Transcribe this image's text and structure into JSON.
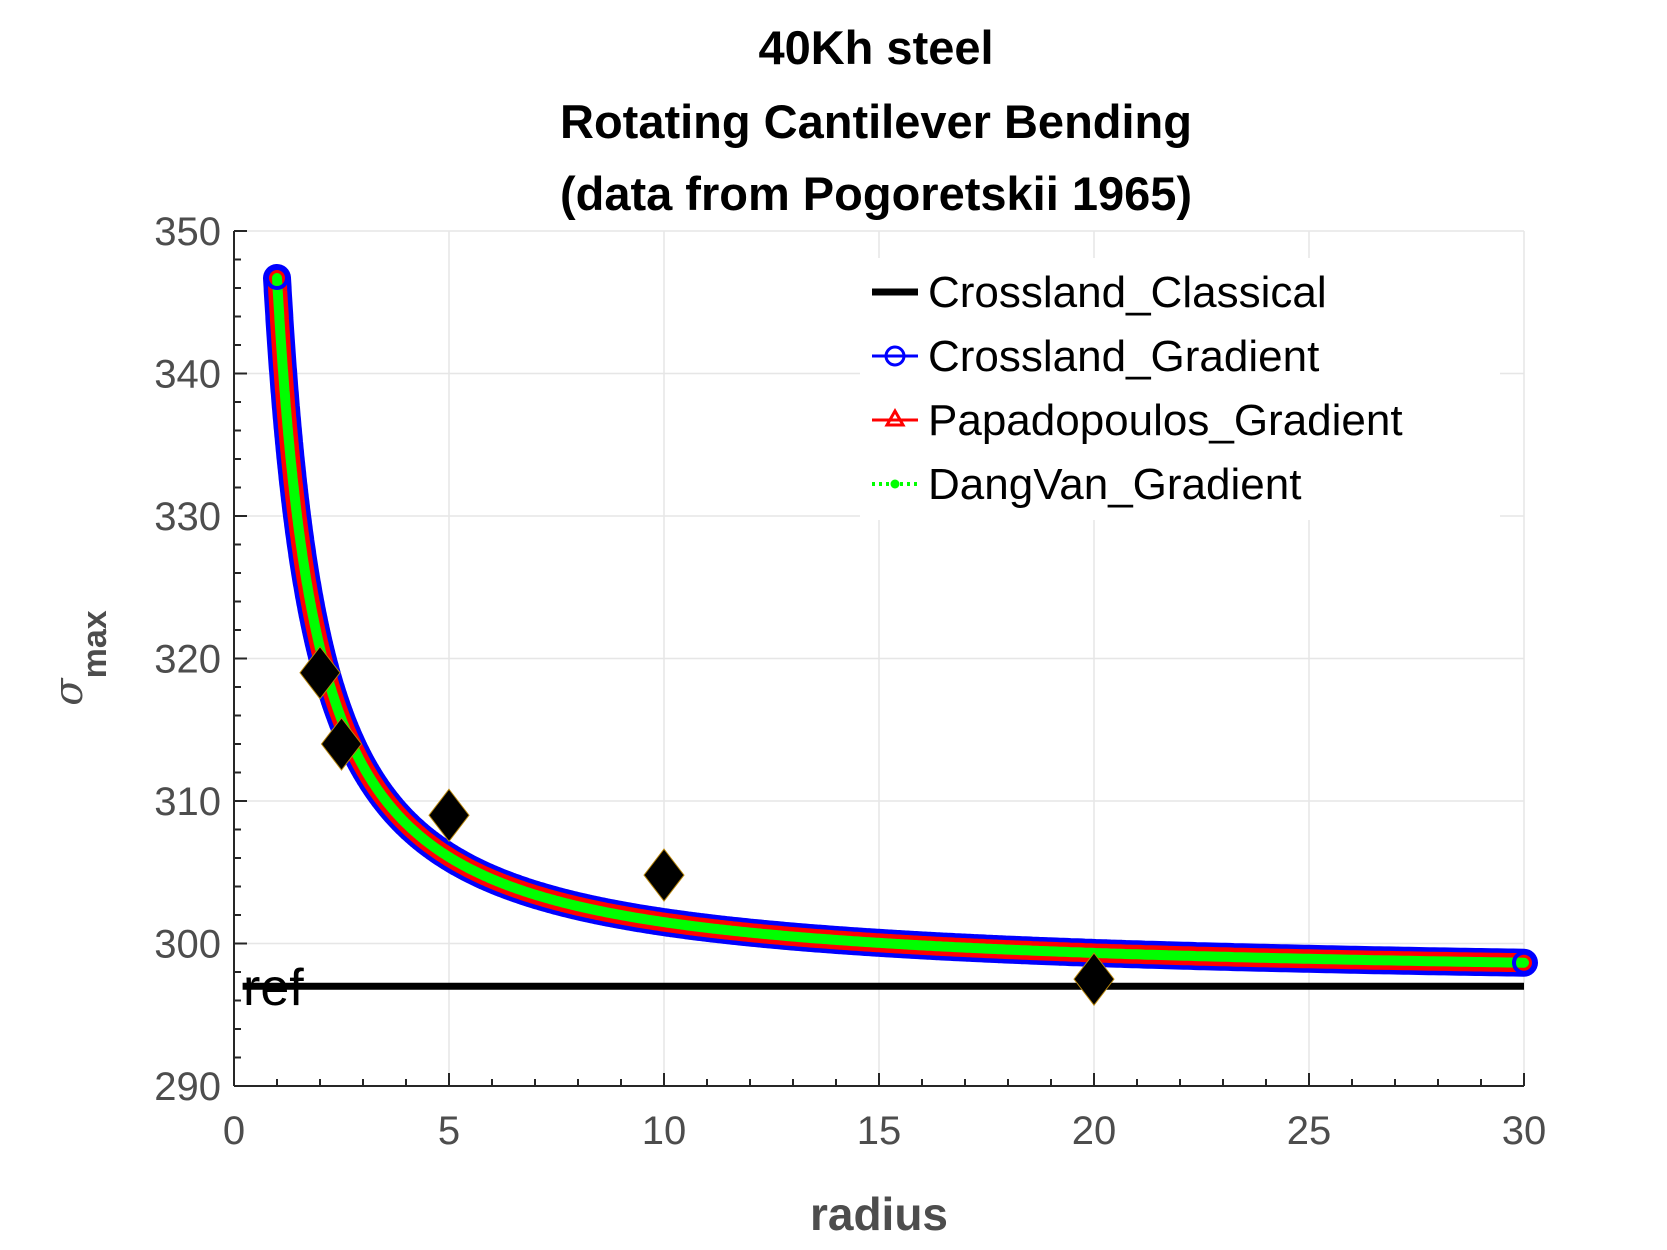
{
  "chart_data": {
    "type": "line",
    "title_lines": [
      "40Kh steel",
      "Rotating Cantilever Bending",
      "(data from Pogoretskii 1965)"
    ],
    "xlabel": "radius",
    "ylabel_symbol": "σ",
    "ylabel_subscript": "max",
    "xlim": [
      0,
      30
    ],
    "ylim": [
      290,
      350
    ],
    "xticks": [
      0,
      5,
      10,
      15,
      20,
      25,
      30
    ],
    "yticks": [
      290,
      300,
      310,
      320,
      330,
      340,
      350
    ],
    "grid": true,
    "legend_position": "top-right",
    "annotation": "ref",
    "series": [
      {
        "name": "Crossland_Classical",
        "color": "#000000",
        "style": "solid-thick",
        "x": [
          0.2,
          30
        ],
        "y": [
          297,
          297
        ]
      },
      {
        "name": "Crossland_Gradient",
        "color": "#0000ff",
        "style": "line-circle",
        "model": {
          "a": 297.4,
          "b": 49.3,
          "c": 0.08,
          "x_start": 1,
          "x_end": 30
        }
      },
      {
        "name": "Papadopoulos_Gradient",
        "color": "#ff0000",
        "style": "line-triangle",
        "model": {
          "a": 297.4,
          "b": 49.3,
          "c": 0.08,
          "x_start": 1,
          "x_end": 30
        }
      },
      {
        "name": "DangVan_Gradient",
        "color": "#00ff00",
        "style": "dotted-point",
        "model": {
          "a": 297.4,
          "b": 49.3,
          "c": 0.08,
          "x_start": 1,
          "x_end": 30
        }
      }
    ],
    "experimental": {
      "marker": "diamond",
      "color": "#000000",
      "x": [
        2,
        2.5,
        5,
        10,
        20
      ],
      "y": [
        319,
        314,
        309,
        304.8,
        297.5
      ]
    }
  }
}
